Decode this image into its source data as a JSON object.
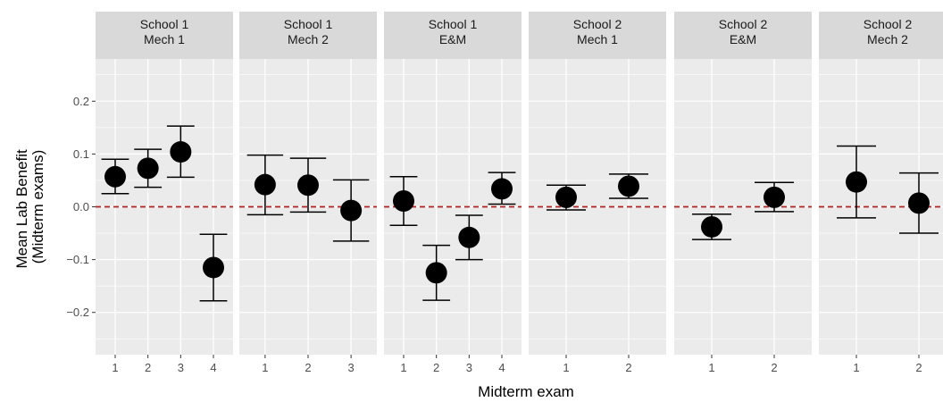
{
  "chart_data": {
    "type": "scatter",
    "title": "",
    "xlabel": "Midterm exam",
    "ylabel": "Mean Lab Benefit (Midterm exams)",
    "ylabel_lines": [
      "Mean Lab Benefit",
      "(Midterm exams)"
    ],
    "ylim": [
      -0.28,
      0.28
    ],
    "y_ticks": [
      -0.2,
      -0.1,
      0.0,
      0.1,
      0.2
    ],
    "y_tick_labels": [
      "−0.2",
      "−0.1",
      "0.0",
      "0.1",
      "0.2"
    ],
    "reference_line": {
      "y": 0,
      "style": "dashed",
      "color": "#b22222"
    },
    "grid": true,
    "colors": {
      "panel_bg": "#ebebeb",
      "strip_bg": "#d9d9d9",
      "grid": "#ffffff",
      "point": "#000000",
      "refline": "#b22222"
    },
    "facets": [
      {
        "label": [
          "School 1",
          "Mech 1"
        ],
        "x": [
          1,
          2,
          3,
          4
        ],
        "y": [
          0.057,
          0.073,
          0.104,
          -0.115
        ],
        "ymin": [
          0.025,
          0.037,
          0.056,
          -0.178
        ],
        "ymax": [
          0.09,
          0.109,
          0.153,
          -0.052
        ]
      },
      {
        "label": [
          "School 1",
          "Mech 2"
        ],
        "x": [
          1,
          2,
          3
        ],
        "y": [
          0.042,
          0.041,
          -0.007
        ],
        "ymin": [
          -0.015,
          -0.01,
          -0.065
        ],
        "ymax": [
          0.098,
          0.092,
          0.051
        ]
      },
      {
        "label": [
          "School 1",
          "E&M"
        ],
        "x": [
          1,
          2,
          3,
          4
        ],
        "y": [
          0.011,
          -0.125,
          -0.058,
          0.034
        ],
        "ymin": [
          -0.035,
          -0.177,
          -0.1,
          0.005
        ],
        "ymax": [
          0.057,
          -0.073,
          -0.016,
          0.065
        ]
      },
      {
        "label": [
          "School 2",
          "Mech 1"
        ],
        "x": [
          1,
          2
        ],
        "y": [
          0.018,
          0.039
        ],
        "ymin": [
          -0.006,
          0.016
        ],
        "ymax": [
          0.041,
          0.062
        ]
      },
      {
        "label": [
          "School 2",
          "E&M"
        ],
        "x": [
          1,
          2
        ],
        "y": [
          -0.038,
          0.018
        ],
        "ymin": [
          -0.062,
          -0.009
        ],
        "ymax": [
          -0.014,
          0.046
        ]
      },
      {
        "label": [
          "School 2",
          "Mech 2"
        ],
        "x": [
          1,
          2
        ],
        "y": [
          0.047,
          0.007
        ],
        "ymin": [
          -0.021,
          -0.05
        ],
        "ymax": [
          0.115,
          0.064
        ]
      }
    ]
  }
}
